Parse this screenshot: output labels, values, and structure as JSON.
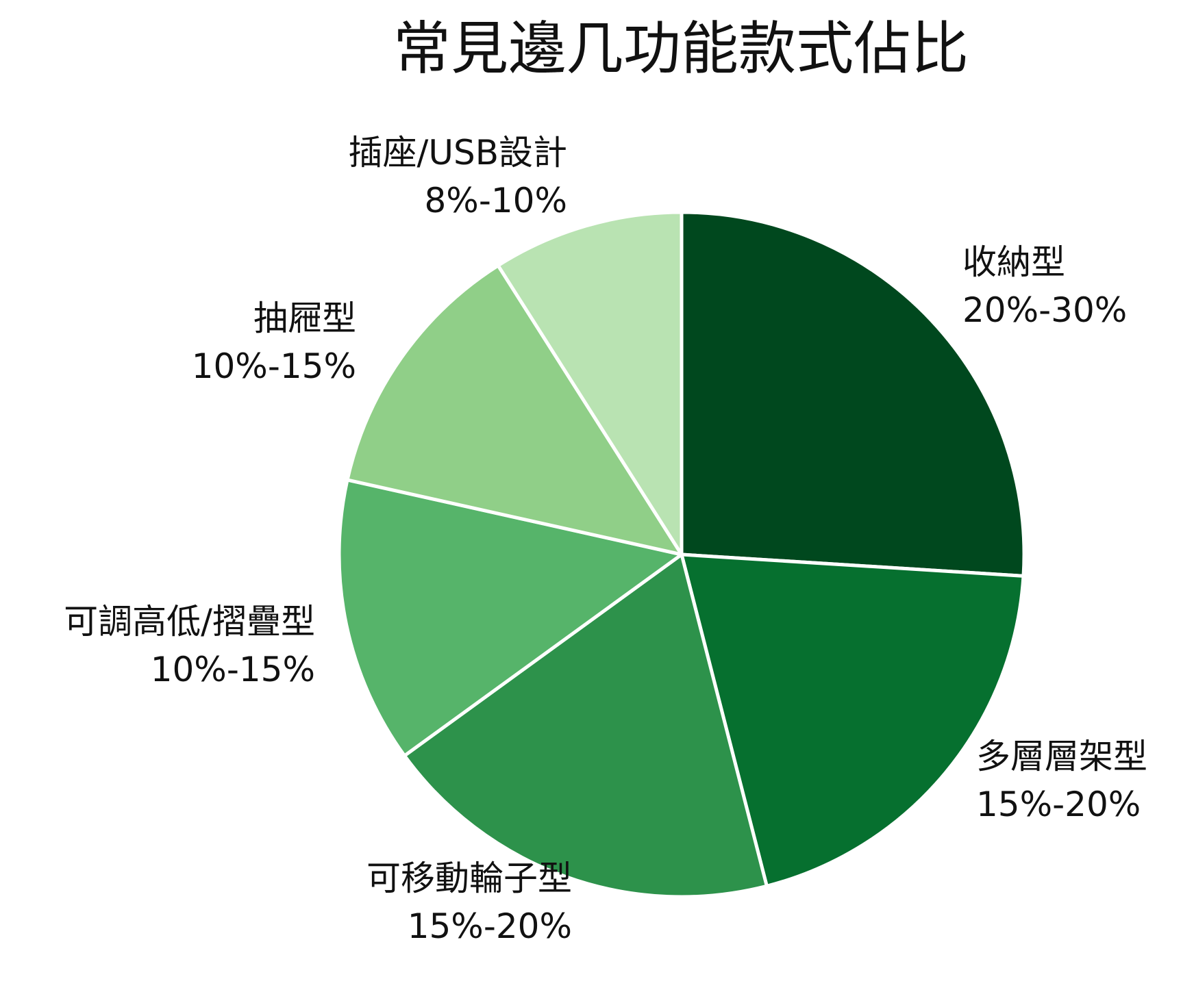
{
  "chart_data": {
    "type": "pie",
    "title": "常見邊几功能款式佔比",
    "slices": [
      {
        "label": "收納型",
        "range_text": "20%-30%",
        "value": 26,
        "color": "#00481e"
      },
      {
        "label": "多層層架型",
        "range_text": "15%-20%",
        "value": 20,
        "color": "#06702f"
      },
      {
        "label": "可移動輪子型",
        "range_text": "15%-20%",
        "value": 19,
        "color": "#2d924b"
      },
      {
        "label": "可調高低/摺疊型",
        "range_text": "10%-15%",
        "value": 13.5,
        "color": "#56b46a"
      },
      {
        "label": "抽屜型",
        "range_text": "10%-15%",
        "value": 12.5,
        "color": "#90cf88"
      },
      {
        "label": "插座/USB設計",
        "range_text": "8%-10%",
        "value": 9,
        "color": "#b9e3b2"
      }
    ],
    "start_angle": "12 o'clock",
    "direction": "clockwise",
    "slice_border_color": "#ffffff",
    "legend": "none"
  }
}
